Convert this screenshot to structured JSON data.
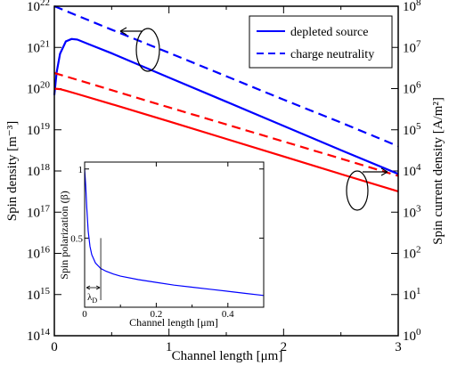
{
  "chart_data": {
    "main": {
      "type": "line",
      "xlabel": "Channel length [μm]",
      "ylabel_left": "Spin density [m⁻³]",
      "ylabel_right": "Spin current density [A/m²]",
      "xlim": [
        0,
        3
      ],
      "ylim_left": [
        100000000000000.0,
        1e+22
      ],
      "ylim_right": [
        1,
        100000000.0
      ],
      "yscale": "log",
      "x_ticks": [
        "0",
        "1",
        "2",
        "3"
      ],
      "y_left_ticks": [
        {
          "base": "10",
          "exp": "14"
        },
        {
          "base": "10",
          "exp": "15"
        },
        {
          "base": "10",
          "exp": "16"
        },
        {
          "base": "10",
          "exp": "17"
        },
        {
          "base": "10",
          "exp": "18"
        },
        {
          "base": "10",
          "exp": "19"
        },
        {
          "base": "10",
          "exp": "20"
        },
        {
          "base": "10",
          "exp": "21"
        },
        {
          "base": "10",
          "exp": "22"
        }
      ],
      "y_right_ticks": [
        {
          "base": "10",
          "exp": "0"
        },
        {
          "base": "10",
          "exp": "1"
        },
        {
          "base": "10",
          "exp": "2"
        },
        {
          "base": "10",
          "exp": "3"
        },
        {
          "base": "10",
          "exp": "4"
        },
        {
          "base": "10",
          "exp": "5"
        },
        {
          "base": "10",
          "exp": "6"
        },
        {
          "base": "10",
          "exp": "7"
        },
        {
          "base": "10",
          "exp": "8"
        }
      ],
      "legend_position": "top-right",
      "legend": [
        {
          "label": "depleted source",
          "style": "solid"
        },
        {
          "label": "charge neutrality",
          "style": "dashed"
        }
      ],
      "series": [
        {
          "name": "depleted source",
          "axis": "left",
          "color": "#0000ff",
          "style": "solid",
          "x": [
            0,
            0.02,
            0.05,
            0.1,
            0.15,
            0.2,
            0.3,
            0.5,
            1.0,
            1.5,
            2.0,
            2.5,
            3.0
          ],
          "y": [
            7e+19,
            2.5e+20,
            7e+20,
            1.4e+21,
            1.6e+21,
            1.55e+21,
            1.2e+21,
            7.2e+20,
            1.85e+20,
            4.8e+19,
            1.24e+19,
            3.2e+18,
            8.5e+17
          ]
        },
        {
          "name": "charge neutrality",
          "axis": "left",
          "color": "#0000ff",
          "style": "dashed",
          "x": [
            0,
            0.5,
            1.0,
            1.5,
            2.0,
            2.5,
            3.0
          ],
          "y": [
            1e+22,
            2.7e+21,
            7.4e+20,
            2e+20,
            5.4e+19,
            1.5e+19,
            4e+18
          ]
        },
        {
          "name": "depleted source",
          "axis": "right",
          "color": "#ff0000",
          "style": "solid",
          "x": [
            0,
            0.05,
            0.1,
            0.2,
            0.5,
            1.0,
            1.5,
            2.0,
            2.5,
            3.0
          ],
          "y": [
            1000000.0,
            970000.0,
            890000.0,
            740000.0,
            420000.0,
            160000.0,
            60000.0,
            22500.0,
            8400.0,
            3200.0
          ]
        },
        {
          "name": "charge neutrality",
          "axis": "right",
          "color": "#ff0000",
          "style": "dashed",
          "x": [
            0,
            0.5,
            1.0,
            1.5,
            2.0,
            2.5,
            3.0
          ],
          "y": [
            2400000.0,
            920000.0,
            350000.0,
            135000.0,
            52000.0,
            20000.0,
            7600.0
          ]
        }
      ]
    },
    "inset": {
      "type": "line",
      "xlabel": "Channel length [μm]",
      "ylabel": "Spin polarization (β)",
      "xlim": [
        0,
        0.5
      ],
      "ylim": [
        0,
        1.05
      ],
      "x_ticks": [
        "0",
        "0.2",
        "0.4"
      ],
      "y_ticks": [
        "0.5",
        "1"
      ],
      "annotation": {
        "base": "λ",
        "sub": "D",
        "x": 0.045
      },
      "series": [
        {
          "name": "",
          "color": "#0000ff",
          "style": "solid",
          "x": [
            0,
            0.003,
            0.006,
            0.01,
            0.015,
            0.02,
            0.03,
            0.045,
            0.06,
            0.08,
            0.1,
            0.15,
            0.2,
            0.25,
            0.3,
            0.35,
            0.4,
            0.45,
            0.5
          ],
          "y": [
            1.0,
            0.88,
            0.72,
            0.55,
            0.44,
            0.38,
            0.32,
            0.28,
            0.26,
            0.24,
            0.225,
            0.2,
            0.18,
            0.16,
            0.145,
            0.13,
            0.115,
            0.1,
            0.085
          ]
        }
      ]
    }
  }
}
